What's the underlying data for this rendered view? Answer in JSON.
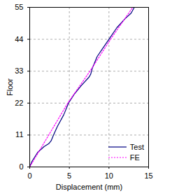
{
  "chart_data": {
    "type": "line",
    "x_label": "Displacement (mm)",
    "y_label": "Floor",
    "xlim": [
      0,
      15
    ],
    "xticks": [
      0,
      5,
      10,
      15
    ],
    "ylim": [
      0,
      55
    ],
    "yticks": [
      0,
      11,
      22,
      33,
      44,
      55
    ],
    "grid": true,
    "legend": "lower right",
    "series": [
      {
        "name": "Test",
        "color": "#000080",
        "line_style": "solid",
        "x": [
          0,
          0.3,
          1.0,
          1.8,
          2.4,
          2.7,
          3.0,
          3.5,
          4.3,
          4.9,
          5.6,
          6.5,
          7.5,
          7.7,
          7.9,
          8.2,
          8.5,
          9.0,
          10.0,
          11.0,
          12.0,
          12.8,
          13.2
        ],
        "y": [
          0,
          2,
          5,
          7,
          8,
          9,
          11,
          14,
          18,
          22,
          25,
          28,
          31,
          32,
          34,
          36,
          38,
          40,
          44,
          48,
          51,
          53,
          55
        ]
      },
      {
        "name": "FE",
        "color": "#ff00ff",
        "line_style": "dotted",
        "x": [
          0,
          1.2,
          2.4,
          3.6,
          4.8,
          6.2,
          7.6,
          8.9,
          10.2,
          11.6,
          13.0
        ],
        "y": [
          0,
          5.5,
          11,
          16.5,
          22,
          27.5,
          33,
          38.5,
          44,
          49.5,
          55
        ]
      }
    ]
  }
}
